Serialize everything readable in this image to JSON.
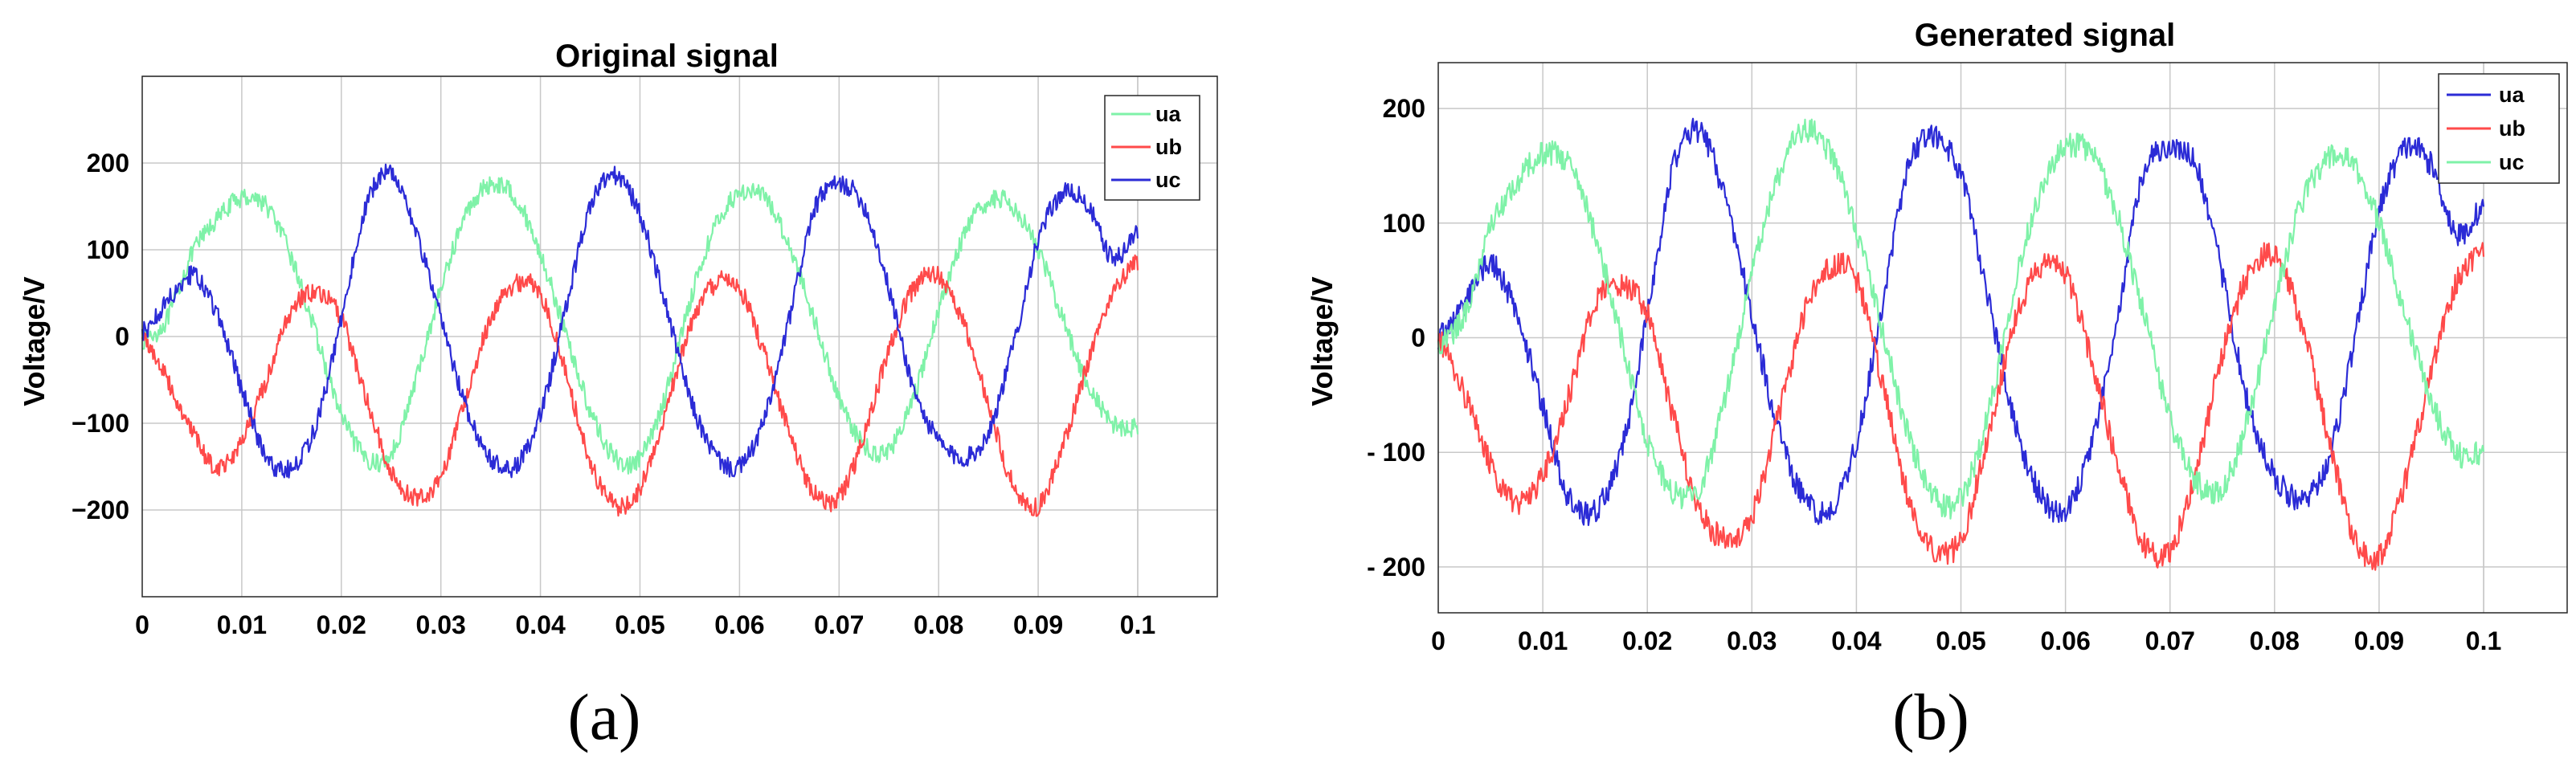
{
  "chart_data": [
    {
      "type": "line",
      "panel": "(a)",
      "title": "Original signal",
      "xlabel": "",
      "ylabel": "Voltage/V",
      "xlim": [
        0,
        0.1
      ],
      "ylim": [
        -300,
        300
      ],
      "xticks": [
        "0",
        "0.01",
        "0.02",
        "0.03",
        "0.04",
        "0.05",
        "0.06",
        "0.07",
        "0.08",
        "0.09",
        "0.1"
      ],
      "yticks": [
        "200",
        "100",
        "0",
        "−100",
        "−200"
      ],
      "ytick_values": [
        200,
        100,
        0,
        -100,
        -200
      ],
      "grid": true,
      "legend_position": "top-right",
      "x": [
        0,
        0.0025,
        0.005,
        0.0075,
        0.01,
        0.0125,
        0.015,
        0.0175,
        0.02,
        0.0225,
        0.025,
        0.0275,
        0.03,
        0.0325,
        0.035,
        0.0375,
        0.04,
        0.0425,
        0.045,
        0.0475,
        0.05,
        0.0525,
        0.055,
        0.0575,
        0.06,
        0.0625,
        0.065,
        0.0675,
        0.07,
        0.0725,
        0.075,
        0.0775,
        0.08,
        0.0825,
        0.085,
        0.0875,
        0.09,
        0.0925,
        0.095,
        0.0975,
        0.1
      ],
      "series": [
        {
          "name": "ua",
          "color": "#7ff2a8",
          "values": [
            -5,
            20,
            95,
            135,
            160,
            150,
            90,
            0,
            -90,
            -140,
            -135,
            -50,
            55,
            140,
            175,
            160,
            95,
            5,
            -85,
            -140,
            -140,
            -70,
            40,
            125,
            165,
            160,
            105,
            20,
            -70,
            -125,
            -130,
            -70,
            30,
            115,
            155,
            150,
            100,
            20,
            -55,
            -100,
            -105
          ]
        },
        {
          "name": "ub",
          "color": "#ff4a4a",
          "values": [
            0,
            -50,
            -110,
            -150,
            -120,
            -50,
            30,
            50,
            20,
            -70,
            -155,
            -185,
            -160,
            -70,
            20,
            60,
            50,
            -40,
            -145,
            -195,
            -175,
            -90,
            10,
            60,
            55,
            -20,
            -110,
            -180,
            -185,
            -115,
            -15,
            55,
            70,
            15,
            -80,
            -170,
            -195,
            -125,
            -30,
            50,
            85
          ]
        },
        {
          "name": "uc",
          "color": "#2b2bd6",
          "values": [
            5,
            40,
            70,
            25,
            -60,
            -140,
            -150,
            -100,
            20,
            150,
            190,
            120,
            20,
            -80,
            -140,
            -150,
            -90,
            30,
            150,
            185,
            140,
            40,
            -70,
            -135,
            -150,
            -95,
            20,
            145,
            175,
            150,
            55,
            -60,
            -120,
            -140,
            -110,
            -10,
            110,
            165,
            150,
            90,
            120
          ]
        }
      ]
    },
    {
      "type": "line",
      "panel": "(b)",
      "title": "Generated signal",
      "xlabel": "",
      "ylabel": "Voltage/V",
      "xlim": [
        0,
        0.1
      ],
      "ylim": [
        -240,
        240
      ],
      "xticks": [
        "0",
        "0.01",
        "0.02",
        "0.03",
        "0.04",
        "0.05",
        "0.06",
        "0.07",
        "0.08",
        "0.09",
        "0.1"
      ],
      "yticks": [
        "200",
        "100",
        "0",
        "- 100",
        "- 200"
      ],
      "ytick_values": [
        200,
        100,
        0,
        -100,
        -200
      ],
      "grid": true,
      "legend_position": "top-right",
      "x": [
        0,
        0.0025,
        0.005,
        0.0075,
        0.01,
        0.0125,
        0.015,
        0.0175,
        0.02,
        0.0225,
        0.025,
        0.0275,
        0.03,
        0.0325,
        0.035,
        0.0375,
        0.04,
        0.0425,
        0.045,
        0.0475,
        0.05,
        0.0525,
        0.055,
        0.0575,
        0.06,
        0.0625,
        0.065,
        0.0675,
        0.07,
        0.0725,
        0.075,
        0.0775,
        0.08,
        0.0825,
        0.085,
        0.0875,
        0.09,
        0.0925,
        0.095,
        0.0975,
        0.1
      ],
      "series": [
        {
          "name": "ua",
          "color": "#2b2bd6",
          "values": [
            0,
            30,
            65,
            20,
            -60,
            -140,
            -150,
            -100,
            20,
            150,
            180,
            120,
            20,
            -80,
            -140,
            -150,
            -90,
            30,
            150,
            175,
            140,
            40,
            -70,
            -135,
            -150,
            -95,
            20,
            145,
            165,
            150,
            55,
            -60,
            -120,
            -140,
            -110,
            -10,
            110,
            165,
            150,
            90,
            115
          ]
        },
        {
          "name": "ub",
          "color": "#ff4a4a",
          "values": [
            0,
            -50,
            -110,
            -145,
            -120,
            -50,
            30,
            45,
            20,
            -70,
            -150,
            -175,
            -155,
            -70,
            20,
            60,
            50,
            -40,
            -140,
            -185,
            -175,
            -90,
            10,
            60,
            55,
            -20,
            -110,
            -180,
            -185,
            -115,
            -15,
            55,
            70,
            15,
            -80,
            -170,
            -190,
            -125,
            -30,
            50,
            75
          ]
        },
        {
          "name": "uc",
          "color": "#7ff2a8",
          "values": [
            -5,
            20,
            95,
            135,
            160,
            150,
            90,
            0,
            -90,
            -135,
            -130,
            -50,
            55,
            140,
            180,
            160,
            95,
            5,
            -85,
            -140,
            -140,
            -70,
            40,
            125,
            165,
            160,
            105,
            20,
            -70,
            -125,
            -130,
            -70,
            30,
            115,
            155,
            150,
            100,
            20,
            -55,
            -100,
            -100
          ]
        }
      ]
    }
  ]
}
